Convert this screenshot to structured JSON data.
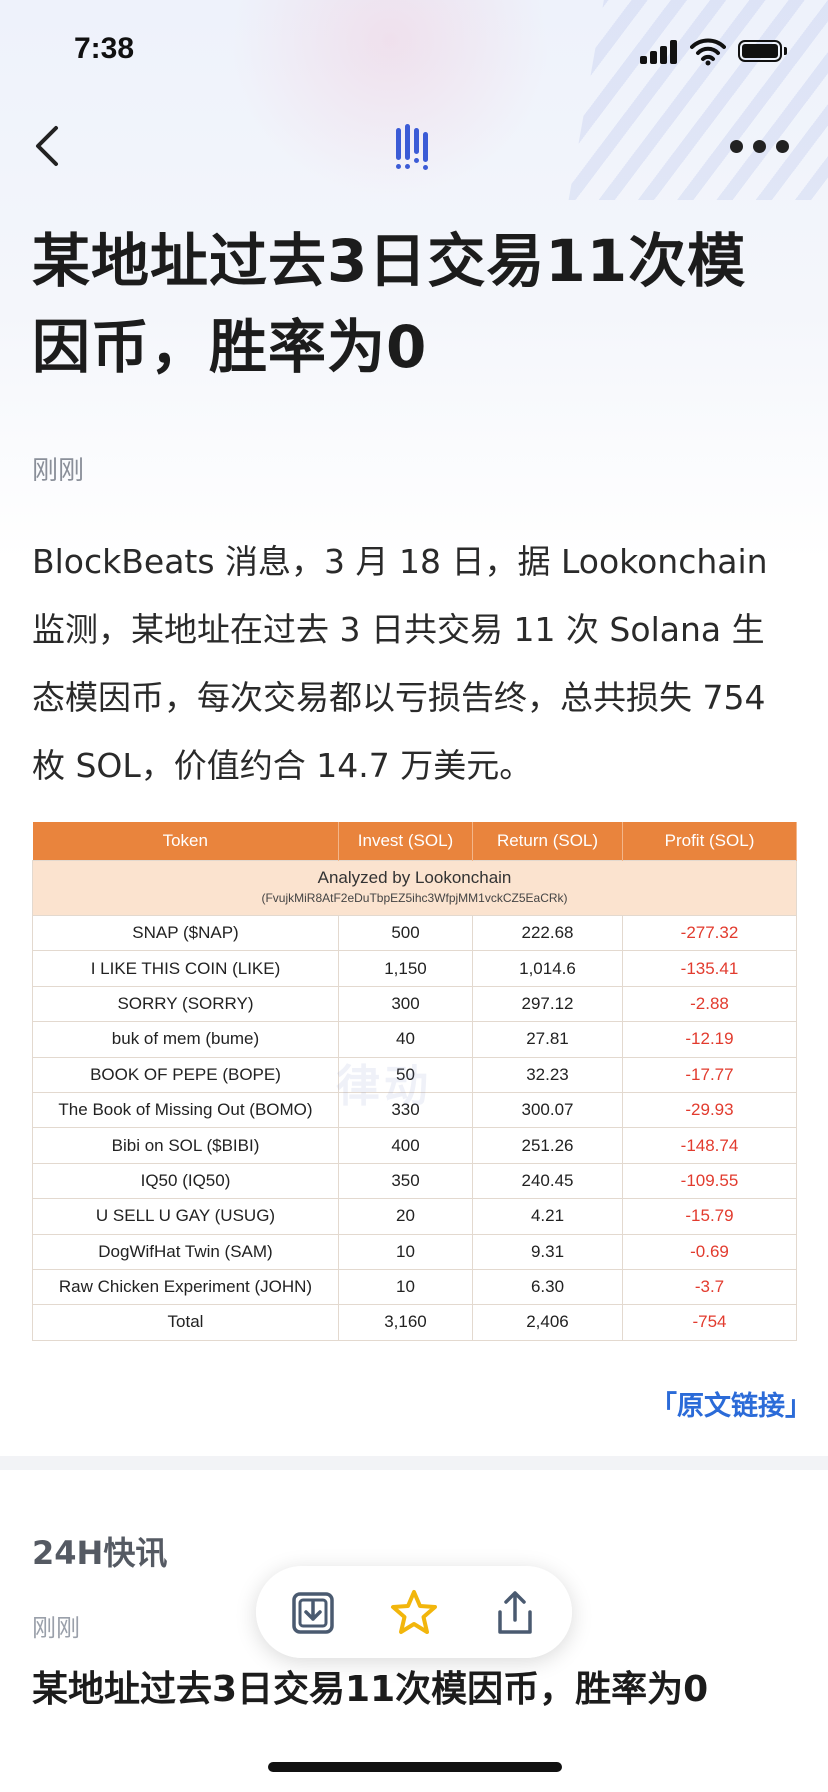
{
  "status_bar": {
    "time": "7:38"
  },
  "article": {
    "title": "某地址过去3日交易11次模因币，胜率为0",
    "time": "刚刚",
    "body": "BlockBeats 消息，3 月 18 日，据 Lookonchain 监测，某地址在过去 3 日共交易 11 次 Solana 生态模因币，每次交易都以亏损告终，总共损失 754 枚 SOL，价值约合 14.7 万美元。",
    "source_link": "「原文链接」"
  },
  "table": {
    "headers": [
      "Token",
      "Invest (SOL)",
      "Return (SOL)",
      "Profit (SOL)"
    ],
    "analyzed_title": "Analyzed by Lookonchain",
    "analyzed_address": "(FvujkMiR8AtF2eDuTbpEZ5ihc3WfpjMM1vckCZ5EaCRk)",
    "rows": [
      {
        "token": "SNAP ($NAP)",
        "invest": "500",
        "return": "222.68",
        "profit": "-277.32"
      },
      {
        "token": "I LIKE THIS COIN (LIKE)",
        "invest": "1,150",
        "return": "1,014.6",
        "profit": "-135.41"
      },
      {
        "token": "SORRY (SORRY)",
        "invest": "300",
        "return": "297.12",
        "profit": "-2.88"
      },
      {
        "token": "buk of mem (bume)",
        "invest": "40",
        "return": "27.81",
        "profit": "-12.19"
      },
      {
        "token": "BOOK OF PEPE (BOPE)",
        "invest": "50",
        "return": "32.23",
        "profit": "-17.77"
      },
      {
        "token": "The Book of Missing Out (BOMO)",
        "invest": "330",
        "return": "300.07",
        "profit": "-29.93"
      },
      {
        "token": "Bibi on SOL ($BIBI)",
        "invest": "400",
        "return": "251.26",
        "profit": "-148.74"
      },
      {
        "token": "IQ50 (IQ50)",
        "invest": "350",
        "return": "240.45",
        "profit": "-109.55"
      },
      {
        "token": "U SELL U GAY (USUG)",
        "invest": "20",
        "return": "4.21",
        "profit": "-15.79"
      },
      {
        "token": "DogWifHat Twin (SAM)",
        "invest": "10",
        "return": "9.31",
        "profit": "-0.69"
      },
      {
        "token": "Raw Chicken Experiment (JOHN)",
        "invest": "10",
        "return": "6.30",
        "profit": "-3.7"
      }
    ],
    "total": {
      "token": "Total",
      "invest": "3,160",
      "return": "2,406",
      "profit": "-754"
    },
    "watermark": "律动"
  },
  "feed": {
    "section_title": "24H快讯",
    "item_time": "刚刚",
    "item_title": "某地址过去3日交易11次模因币，胜率为0"
  },
  "icons": {
    "back": "chevron-left-icon",
    "logo": "blockbeats-logo-icon",
    "more": "more-dots-icon",
    "download": "download-icon",
    "star": "star-icon",
    "share": "share-icon"
  },
  "colors": {
    "table_header": "#e9843d",
    "analyzed_row": "#fbe3cf",
    "negative": "#e23b2e",
    "link": "#2b6bd8",
    "logo": "#3b5bd6",
    "star": "#f2b60c"
  }
}
